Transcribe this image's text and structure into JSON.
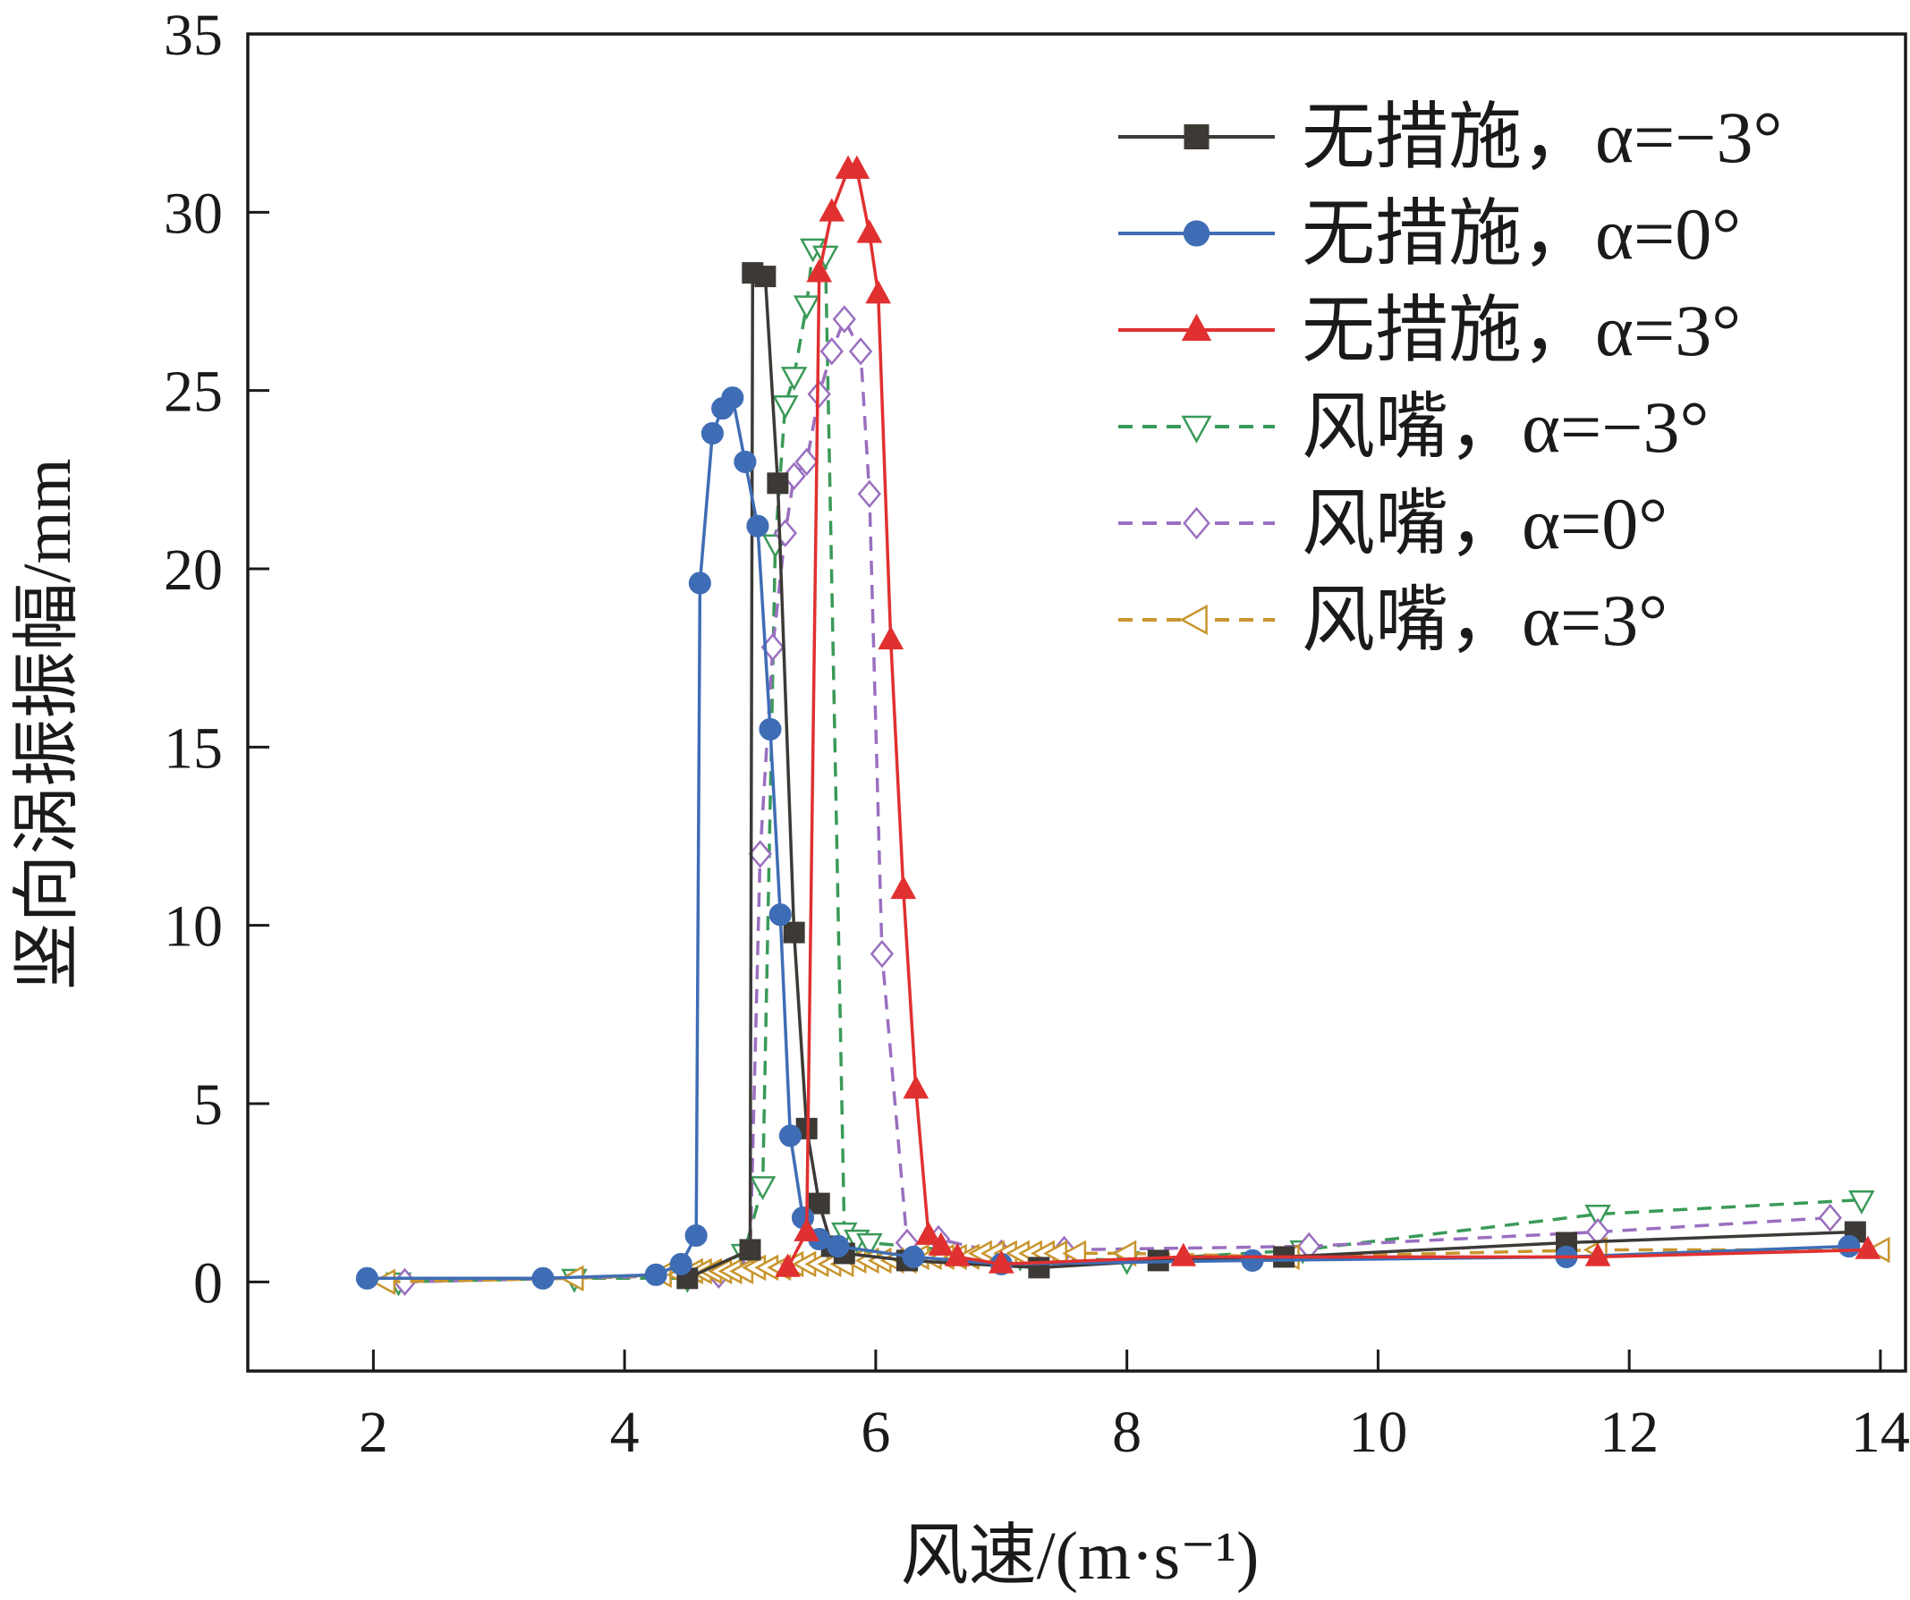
{
  "chart_data": {
    "type": "line",
    "xlabel": "风速/(m·s⁻¹)",
    "ylabel": "竖向涡振振幅/mm",
    "xlim": [
      1,
      14.2
    ],
    "ylim": [
      -2.5,
      35
    ],
    "xticks": [
      2,
      4,
      6,
      8,
      10,
      12,
      14
    ],
    "yticks": [
      0,
      5,
      10,
      15,
      20,
      25,
      30,
      35
    ],
    "legend_position": "top-right",
    "series": [
      {
        "name": "无措施，α=−3°",
        "color": "#3d3a36",
        "marker": "square",
        "filled": true,
        "dashed": false,
        "x": [
          4.5,
          5.0,
          5.02,
          5.12,
          5.22,
          5.35,
          5.45,
          5.55,
          5.65,
          5.75,
          6.25,
          7.3,
          8.25,
          9.25,
          11.5,
          13.8
        ],
        "y": [
          0.1,
          0.9,
          28.3,
          28.2,
          22.4,
          9.8,
          4.3,
          2.2,
          1.0,
          0.8,
          0.6,
          0.4,
          0.6,
          0.7,
          1.1,
          1.4
        ]
      },
      {
        "name": "无措施，α=0°",
        "color": "#3f6db5",
        "marker": "circle",
        "filled": true,
        "dashed": false,
        "x": [
          1.95,
          3.35,
          4.25,
          4.45,
          4.57,
          4.6,
          4.7,
          4.78,
          4.86,
          4.96,
          5.06,
          5.16,
          5.24,
          5.32,
          5.42,
          5.55,
          5.7,
          6.3,
          7.0,
          9.0,
          11.5,
          13.75
        ],
        "y": [
          0.1,
          0.1,
          0.2,
          0.5,
          1.3,
          19.6,
          23.8,
          24.5,
          24.8,
          23.0,
          21.2,
          15.5,
          10.3,
          4.1,
          1.8,
          1.2,
          1.0,
          0.7,
          0.5,
          0.6,
          0.7,
          1.0
        ]
      },
      {
        "name": "无措施，α=3°",
        "color": "#e03030",
        "marker": "triangle-up",
        "filled": true,
        "dashed": false,
        "x": [
          5.3,
          5.45,
          5.55,
          5.65,
          5.78,
          5.85,
          5.95,
          6.02,
          6.12,
          6.22,
          6.32,
          6.42,
          6.52,
          6.65,
          7.0,
          8.45,
          11.75,
          13.9
        ],
        "y": [
          0.4,
          1.4,
          28.3,
          30.0,
          31.2,
          31.2,
          29.4,
          27.7,
          18.0,
          11.0,
          5.4,
          1.3,
          1.0,
          0.7,
          0.5,
          0.7,
          0.7,
          0.9
        ]
      },
      {
        "name": "风嘴，α=−3°",
        "color": "#3a9a58",
        "marker": "triangle-down",
        "filled": false,
        "dashed": true,
        "x": [
          2.2,
          3.6,
          4.5,
          4.95,
          5.1,
          5.2,
          5.28,
          5.35,
          5.45,
          5.5,
          5.6,
          5.75,
          5.85,
          5.95,
          7.15,
          8.0,
          9.4,
          11.75,
          13.85
        ],
        "y": [
          0.0,
          0.1,
          0.1,
          0.8,
          2.7,
          20.7,
          24.6,
          25.4,
          27.4,
          29.0,
          28.8,
          1.4,
          1.2,
          1.1,
          0.7,
          0.6,
          0.9,
          1.9,
          2.3
        ]
      },
      {
        "name": "风嘴，α=0°",
        "color": "#9a6fc0",
        "marker": "diamond",
        "filled": false,
        "dashed": true,
        "x": [
          2.25,
          4.75,
          5.0,
          5.08,
          5.18,
          5.28,
          5.35,
          5.45,
          5.55,
          5.65,
          5.75,
          5.88,
          5.95,
          6.05,
          6.25,
          6.5,
          7.0,
          7.5,
          9.45,
          11.75,
          13.6
        ],
        "y": [
          0.0,
          0.2,
          0.7,
          12.0,
          17.8,
          21.0,
          22.6,
          23.0,
          24.9,
          26.1,
          27.0,
          26.1,
          22.1,
          9.2,
          1.1,
          1.2,
          0.8,
          0.9,
          1.0,
          1.4,
          1.8
        ]
      },
      {
        "name": "风嘴，α=3°",
        "color": "#c8952e",
        "marker": "triangle-left",
        "filled": false,
        "dashed": true,
        "x": [
          2.1,
          3.6,
          4.3,
          4.45,
          4.55,
          4.62,
          4.7,
          4.78,
          4.86,
          4.95,
          5.05,
          5.15,
          5.25,
          5.35,
          5.45,
          5.55,
          5.65,
          5.75,
          5.85,
          5.95,
          6.05,
          6.15,
          6.25,
          6.35,
          6.45,
          6.55,
          6.65,
          6.75,
          6.85,
          6.95,
          7.05,
          7.15,
          7.25,
          7.35,
          7.45,
          7.6,
          8.0,
          9.3,
          11.75,
          14.0
        ],
        "y": [
          0.0,
          0.1,
          0.2,
          0.2,
          0.3,
          0.3,
          0.3,
          0.3,
          0.3,
          0.3,
          0.4,
          0.4,
          0.4,
          0.5,
          0.5,
          0.5,
          0.5,
          0.5,
          0.6,
          0.6,
          0.6,
          0.6,
          0.6,
          0.7,
          0.7,
          0.7,
          0.7,
          0.7,
          0.8,
          0.8,
          0.8,
          0.8,
          0.8,
          0.8,
          0.8,
          0.8,
          0.8,
          0.7,
          0.9,
          0.9
        ]
      }
    ]
  }
}
